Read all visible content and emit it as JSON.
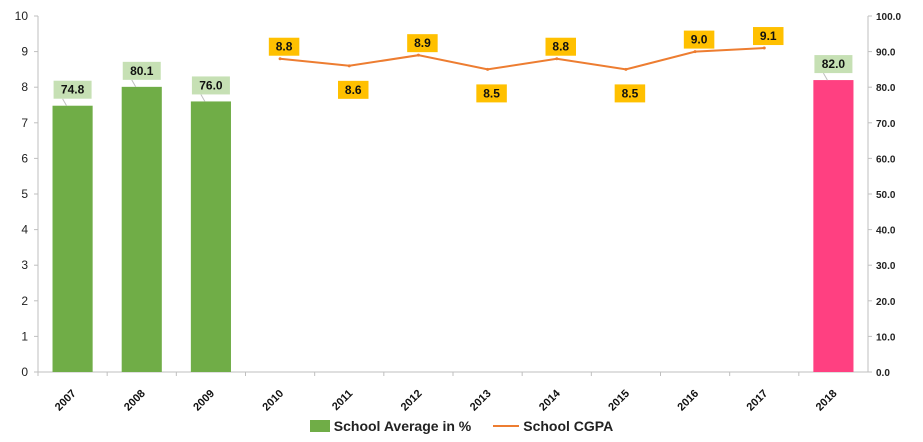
{
  "chart_data": {
    "type": "bar+line",
    "categories": [
      "2007",
      "2008",
      "2009",
      "2010",
      "2011",
      "2012",
      "2013",
      "2014",
      "2015",
      "2016",
      "2017",
      "2018"
    ],
    "left_axis": {
      "ylim": [
        0,
        10
      ],
      "ticks": [
        "0",
        "1",
        "2",
        "3",
        "4",
        "5",
        "6",
        "7",
        "8",
        "9",
        "10"
      ]
    },
    "right_axis": {
      "ylim": [
        0,
        100
      ],
      "ticks": [
        "0.0",
        "10.0",
        "20.0",
        "30.0",
        "40.0",
        "50.0",
        "60.0",
        "70.0",
        "80.0",
        "90.0",
        "100.0"
      ]
    },
    "series": [
      {
        "name": "School Average in %",
        "kind": "bar",
        "axis": "right",
        "color": "#70AD47",
        "values": [
          74.8,
          80.1,
          76.0,
          null,
          null,
          null,
          null,
          null,
          null,
          null,
          null,
          82.0
        ],
        "labels": [
          "74.8",
          "80.1",
          "76.0",
          "",
          "",
          "",
          "",
          "",
          "",
          "",
          "",
          "82.0"
        ],
        "label_bg": "#C6E0B4",
        "highlight": {
          "index": 11,
          "color": "#FF4081",
          "label_bg": "#C6E0B4"
        }
      },
      {
        "name": "School CGPA",
        "kind": "line",
        "axis": "left",
        "color": "#ED7D31",
        "values": [
          null,
          null,
          null,
          8.8,
          8.6,
          8.9,
          8.5,
          8.8,
          8.5,
          9.0,
          9.1,
          null
        ],
        "labels": [
          "",
          "",
          "",
          "8.8",
          "8.6",
          "8.9",
          "8.5",
          "8.8",
          "8.5",
          "9.0",
          "9.1",
          ""
        ],
        "label_bg": "#FFC000"
      }
    ],
    "grid": false,
    "legend_position": "bottom"
  }
}
